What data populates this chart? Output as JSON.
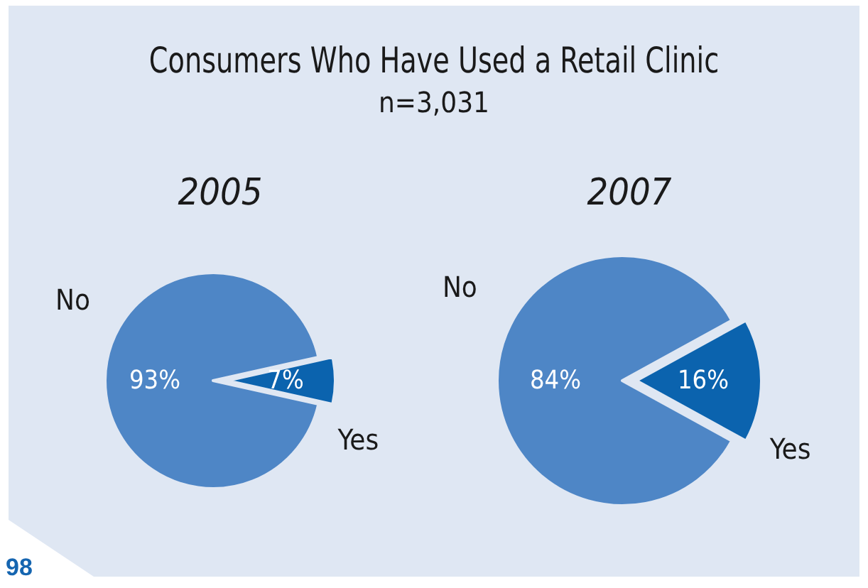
{
  "chart_data": [
    {
      "type": "pie",
      "title": "2005",
      "categories": [
        "No",
        "Yes"
      ],
      "values": [
        93,
        7
      ],
      "value_labels": [
        "93%",
        "7%"
      ],
      "colors": [
        "#4e86c6",
        "#0b63ae"
      ],
      "annotations": [
        "Consumers Who Have Used a Retail Clinic",
        "n=3,031",
        "98"
      ]
    },
    {
      "type": "pie",
      "title": "2007",
      "categories": [
        "No",
        "Yes"
      ],
      "values": [
        84,
        16
      ],
      "value_labels": [
        "84%",
        "16%"
      ],
      "colors": [
        "#4e86c6",
        "#0b63ae"
      ]
    }
  ]
}
